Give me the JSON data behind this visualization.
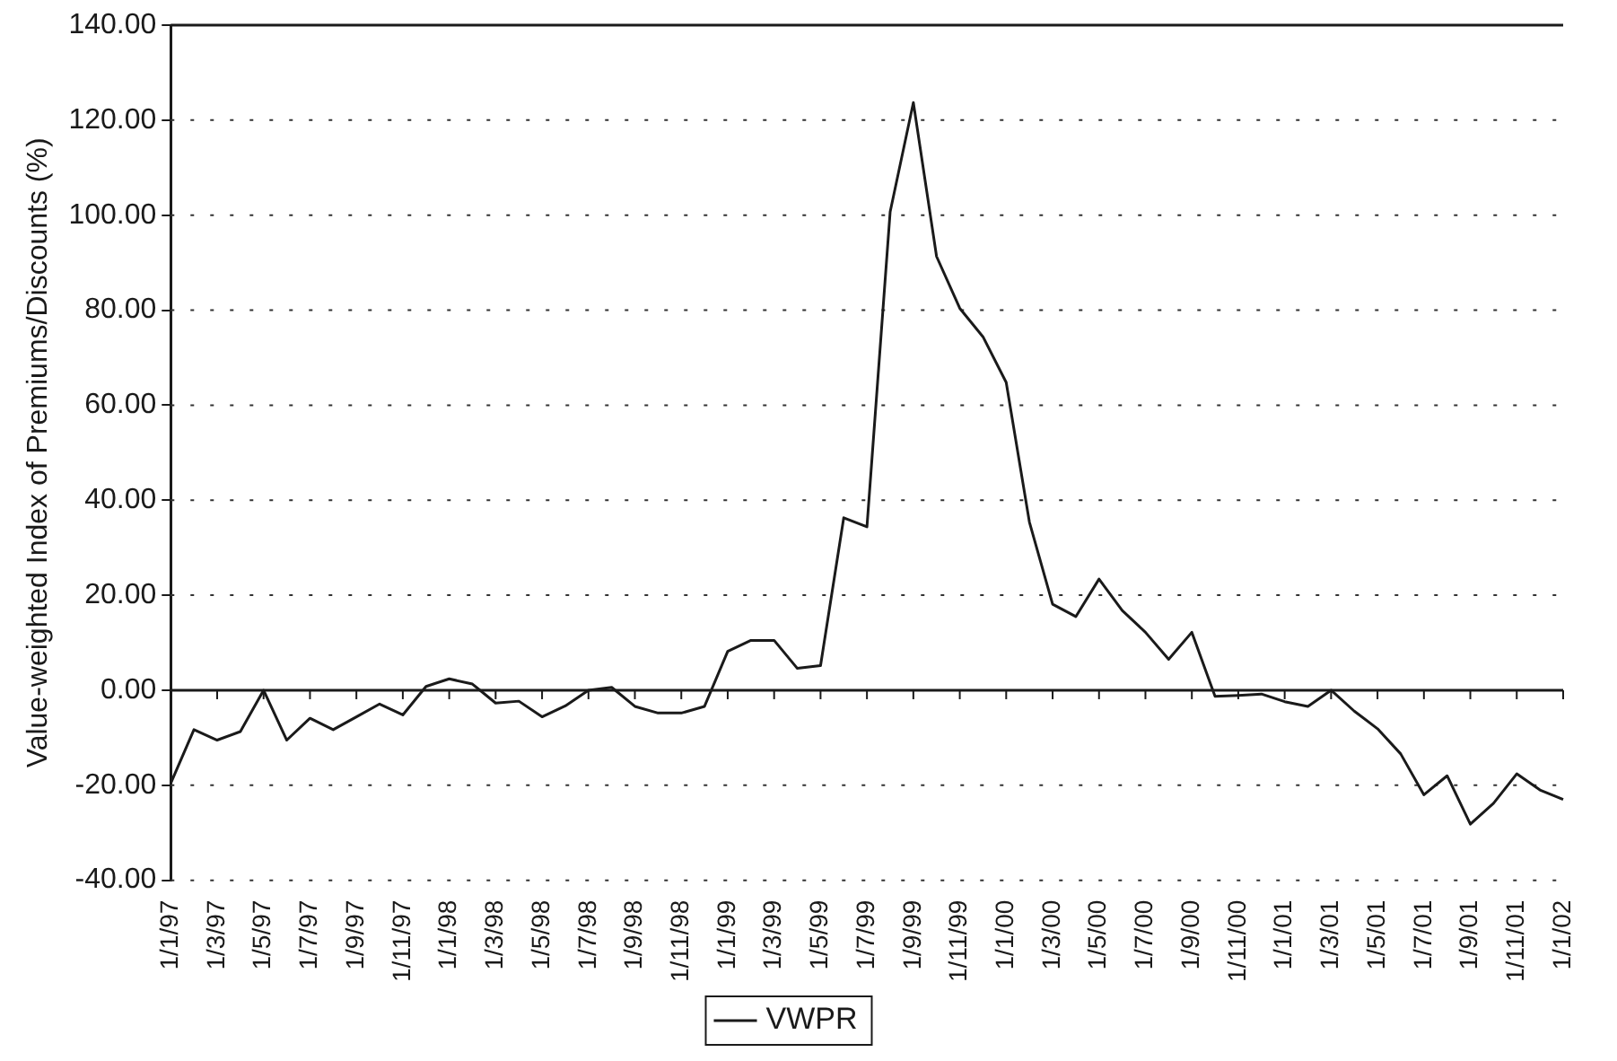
{
  "chart_data": {
    "type": "line",
    "ylabel": "Value-weighted Index of Premiums/Discounts (%)",
    "categories": [
      "1/1/97",
      null,
      "1/3/97",
      null,
      "1/5/97",
      null,
      "1/7/97",
      null,
      "1/9/97",
      null,
      "1/11/97",
      null,
      "1/1/98",
      null,
      "1/3/98",
      null,
      "1/5/98",
      null,
      "1/7/98",
      null,
      "1/9/98",
      null,
      "1/11/98",
      null,
      "1/1/99",
      null,
      "1/3/99",
      null,
      "1/5/99",
      null,
      "1/7/99",
      null,
      "1/9/99",
      null,
      "1/11/99",
      null,
      "1/1/00",
      null,
      "1/3/00",
      null,
      "1/5/00",
      null,
      "1/7/00",
      null,
      "1/9/00",
      null,
      "1/11/00",
      null,
      "1/1/01",
      null,
      "1/3/01",
      null,
      "1/5/01",
      null,
      "1/7/01",
      null,
      "1/9/01",
      null,
      "1/11/01",
      null,
      "1/1/02"
    ],
    "series": [
      {
        "name": "VWPR",
        "color": "#1a1a1a",
        "values": [
          -19.6,
          -8.3,
          -10.5,
          -8.7,
          0,
          -10.5,
          -5.9,
          -8.3,
          -5.6,
          -2.9,
          -5.2,
          0.8,
          2.4,
          1.3,
          -2.7,
          -2.3,
          -5.6,
          -3.3,
          0,
          0.6,
          -3.4,
          -4.8,
          -4.8,
          -3.4,
          8.2,
          10.5,
          10.5,
          4.6,
          5.2,
          36.3,
          34.4,
          100.7,
          123.7,
          91.3,
          80.4,
          74.4,
          64.8,
          35.4,
          18.1,
          15.5,
          23.4,
          16.8,
          12.2,
          6.5,
          12.2,
          -1.3,
          -1.1,
          -0.8,
          -2.4,
          -3.4,
          0,
          -4.4,
          -8.1,
          -13.4,
          -22,
          -18,
          -28.2,
          -23.8,
          -17.6,
          -21,
          -23
        ]
      }
    ],
    "ylim": [
      -40,
      140
    ],
    "yticks": [
      {
        "value": -40,
        "label": "-40.00"
      },
      {
        "value": -20,
        "label": "-20.00"
      },
      {
        "value": 0,
        "label": "0.00"
      },
      {
        "value": 20,
        "label": "20.00"
      },
      {
        "value": 40,
        "label": "40.00"
      },
      {
        "value": 60,
        "label": "60.00"
      },
      {
        "value": 80,
        "label": "80.00"
      },
      {
        "value": 100,
        "label": "100.00"
      },
      {
        "value": 120,
        "label": "120.00"
      },
      {
        "value": 140,
        "label": "140.00"
      }
    ],
    "ref_lines": [
      {
        "axis": "y",
        "value": 0,
        "color": "#1a1a1a",
        "line_style": "solid"
      }
    ],
    "grid": "y",
    "legend": "bottom",
    "marker": "none",
    "line_style": "solid"
  }
}
